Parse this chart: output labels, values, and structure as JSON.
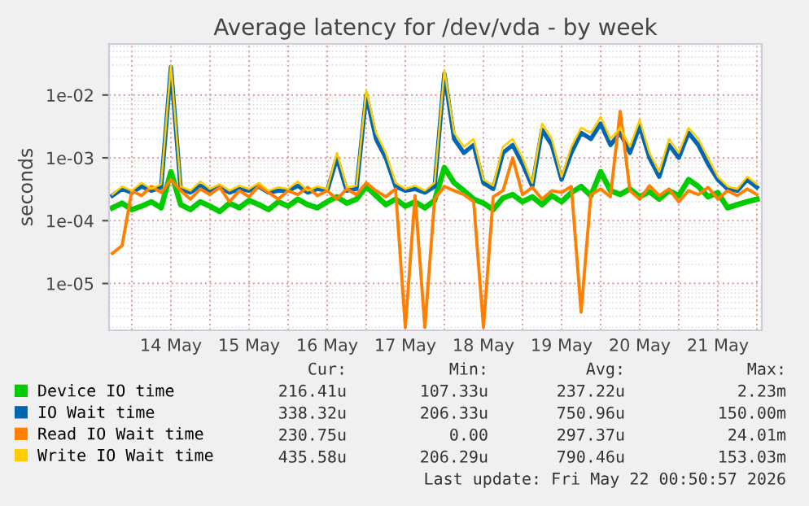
{
  "chart_data": {
    "type": "line",
    "title": "Average latency for /dev/vda - by week",
    "ylabel": "seconds",
    "x": [
      "2026-05-13T18:00",
      "2026-05-13T21:00",
      "2026-05-14T00:00",
      "2026-05-14T03:00",
      "2026-05-14T06:00",
      "2026-05-14T09:00",
      "2026-05-14T12:00",
      "2026-05-14T15:00",
      "2026-05-14T18:00",
      "2026-05-14T21:00",
      "2026-05-15T00:00",
      "2026-05-15T03:00",
      "2026-05-15T06:00",
      "2026-05-15T09:00",
      "2026-05-15T12:00",
      "2026-05-15T15:00",
      "2026-05-15T18:00",
      "2026-05-15T21:00",
      "2026-05-16T00:00",
      "2026-05-16T03:00",
      "2026-05-16T06:00",
      "2026-05-16T09:00",
      "2026-05-16T12:00",
      "2026-05-16T15:00",
      "2026-05-16T18:00",
      "2026-05-16T21:00",
      "2026-05-17T00:00",
      "2026-05-17T03:00",
      "2026-05-17T06:00",
      "2026-05-17T09:00",
      "2026-05-17T12:00",
      "2026-05-17T15:00",
      "2026-05-17T18:00",
      "2026-05-17T21:00",
      "2026-05-18T00:00",
      "2026-05-18T03:00",
      "2026-05-18T06:00",
      "2026-05-18T09:00",
      "2026-05-18T12:00",
      "2026-05-18T15:00",
      "2026-05-18T18:00",
      "2026-05-18T21:00",
      "2026-05-19T00:00",
      "2026-05-19T03:00",
      "2026-05-19T06:00",
      "2026-05-19T09:00",
      "2026-05-19T12:00",
      "2026-05-19T15:00",
      "2026-05-19T18:00",
      "2026-05-19T21:00",
      "2026-05-20T00:00",
      "2026-05-20T03:00",
      "2026-05-20T06:00",
      "2026-05-20T09:00",
      "2026-05-20T12:00",
      "2026-05-20T15:00",
      "2026-05-20T18:00",
      "2026-05-20T21:00",
      "2026-05-21T00:00",
      "2026-05-21T03:00",
      "2026-05-21T06:00",
      "2026-05-21T09:00",
      "2026-05-21T12:00",
      "2026-05-21T15:00",
      "2026-05-21T18:00",
      "2026-05-21T21:00",
      "2026-05-22T00:00"
    ],
    "series": [
      {
        "name": "Device IO time",
        "color": "#00cc00",
        "values": [
          0.00016,
          0.00019,
          0.00015,
          0.00017,
          0.0002,
          0.00016,
          0.0006,
          0.00018,
          0.00015,
          0.0002,
          0.00017,
          0.00014,
          0.00019,
          0.00016,
          0.00021,
          0.00018,
          0.00015,
          0.0002,
          0.00017,
          0.00022,
          0.00018,
          0.00016,
          0.0002,
          0.00024,
          0.00019,
          0.00022,
          0.00035,
          0.00025,
          0.00018,
          0.00022,
          0.00017,
          0.0002,
          0.00016,
          0.00021,
          0.0007,
          0.0004,
          0.0003,
          0.00022,
          0.00019,
          0.00015,
          0.00023,
          0.00026,
          0.0002,
          0.00024,
          0.00018,
          0.00025,
          0.0002,
          0.00028,
          0.00035,
          0.00025,
          0.0006,
          0.0003,
          0.00026,
          0.00032,
          0.00024,
          0.00029,
          0.00022,
          0.0003,
          0.00025,
          0.00045,
          0.00035,
          0.00024,
          0.00028,
          0.00016,
          0.00018,
          0.0002,
          0.00022
        ]
      },
      {
        "name": "IO Wait time",
        "color": "#0066b3",
        "values": [
          0.00025,
          0.00032,
          0.00028,
          0.00035,
          0.0003,
          0.00034,
          0.028,
          0.00032,
          0.00028,
          0.00036,
          0.0003,
          0.00034,
          0.00028,
          0.00032,
          0.0003,
          0.00035,
          0.00028,
          0.0003,
          0.0003,
          0.00036,
          0.00028,
          0.00032,
          0.0003,
          0.001,
          0.0003,
          0.00032,
          0.01,
          0.002,
          0.001,
          0.00035,
          0.0003,
          0.00032,
          0.00028,
          0.00035,
          0.022,
          0.002,
          0.0012,
          0.0016,
          0.0004,
          0.00032,
          0.0012,
          0.0016,
          0.0008,
          0.00035,
          0.0028,
          0.0016,
          0.00045,
          0.0012,
          0.0025,
          0.002,
          0.0035,
          0.0016,
          0.0025,
          0.0012,
          0.0032,
          0.001,
          0.0005,
          0.0016,
          0.001,
          0.0025,
          0.0016,
          0.0008,
          0.00045,
          0.00032,
          0.0003,
          0.00045,
          0.00034
        ]
      },
      {
        "name": "Read IO Wait time",
        "color": "#ff8000",
        "values": [
          3e-05,
          4e-05,
          0.0003,
          0.00025,
          0.00035,
          0.00028,
          0.00045,
          0.0003,
          0.00022,
          0.00032,
          0.00026,
          0.00034,
          0.0002,
          0.0003,
          0.00024,
          0.00036,
          0.00028,
          0.00022,
          0.0003,
          0.00026,
          0.00034,
          0.00025,
          0.0003,
          0.00022,
          0.00032,
          0.00026,
          0.0004,
          0.0003,
          0.00024,
          0.00032,
          2e-06,
          0.00025,
          2e-06,
          0.00022,
          0.00035,
          0.0003,
          0.00026,
          0.0002,
          2e-06,
          0.00024,
          0.0003,
          0.001,
          0.00026,
          0.00034,
          0.00022,
          0.0003,
          0.00028,
          0.00035,
          3.5e-06,
          0.00026,
          0.00032,
          0.00024,
          0.0055,
          0.0003,
          0.00022,
          0.00036,
          0.00025,
          0.00032,
          0.0002,
          0.0003,
          0.00026,
          0.00034,
          0.00022,
          0.0003,
          0.00025,
          0.00032,
          0.00026
        ]
      },
      {
        "name": "Write IO Wait time",
        "color": "#ffcc00",
        "values": [
          0.00026,
          0.00035,
          0.0003,
          0.0004,
          0.00032,
          0.00038,
          0.03,
          0.00035,
          0.0003,
          0.00042,
          0.00032,
          0.00038,
          0.0003,
          0.00036,
          0.00032,
          0.0004,
          0.0003,
          0.00034,
          0.00032,
          0.00042,
          0.0003,
          0.00035,
          0.00032,
          0.0012,
          0.00034,
          0.00036,
          0.012,
          0.0025,
          0.0012,
          0.0004,
          0.00032,
          0.00036,
          0.0003,
          0.0004,
          0.025,
          0.0025,
          0.0015,
          0.002,
          0.00045,
          0.00036,
          0.0015,
          0.002,
          0.001,
          0.0004,
          0.0035,
          0.002,
          0.0005,
          0.0015,
          0.003,
          0.0025,
          0.0045,
          0.002,
          0.003,
          0.0015,
          0.004,
          0.0012,
          0.0006,
          0.002,
          0.0012,
          0.003,
          0.002,
          0.001,
          0.0005,
          0.00035,
          0.00032,
          0.0005,
          0.00038
        ]
      }
    ],
    "log": "y",
    "xlim": [
      "2026-05-13T17:00",
      "2026-05-22T01:30"
    ],
    "xticks": [
      {
        "value": "2026-05-14T00:00",
        "label": null
      },
      {
        "value": "2026-05-14T12:00",
        "label": "14 May"
      },
      {
        "value": "2026-05-15T00:00",
        "label": null
      },
      {
        "value": "2026-05-15T12:00",
        "label": "15 May"
      },
      {
        "value": "2026-05-16T00:00",
        "label": null
      },
      {
        "value": "2026-05-16T12:00",
        "label": "16 May"
      },
      {
        "value": "2026-05-17T00:00",
        "label": null
      },
      {
        "value": "2026-05-17T12:00",
        "label": "17 May"
      },
      {
        "value": "2026-05-18T00:00",
        "label": null
      },
      {
        "value": "2026-05-18T12:00",
        "label": "18 May"
      },
      {
        "value": "2026-05-19T00:00",
        "label": null
      },
      {
        "value": "2026-05-19T12:00",
        "label": "19 May"
      },
      {
        "value": "2026-05-20T00:00",
        "label": null
      },
      {
        "value": "2026-05-20T12:00",
        "label": "20 May"
      },
      {
        "value": "2026-05-21T00:00",
        "label": null
      },
      {
        "value": "2026-05-21T12:00",
        "label": "21 May"
      },
      {
        "value": "2026-05-22T00:00",
        "label": null
      }
    ],
    "ylim": [
      1.8e-06,
      0.065
    ],
    "yticks": [
      {
        "value": 1e-05,
        "label": "1e-05"
      },
      {
        "value": 0.0001,
        "label": "1e-04"
      },
      {
        "value": 0.001,
        "label": "1e-03"
      },
      {
        "value": 0.01,
        "label": "1e-02"
      }
    ],
    "grid": true,
    "legend": "bottom",
    "line_style": "solid",
    "marker": "none",
    "annotations": [
      "Cur:",
      "Min:",
      "Avg:",
      "Max:",
      "216.41u",
      "107.33u",
      "237.22u",
      "2.23m",
      "338.32u",
      "206.33u",
      "750.96u",
      "150.00m",
      "230.75u",
      "0.00",
      "297.37u",
      "24.01m",
      "435.58u",
      "206.29u",
      "790.46u",
      "153.03m",
      "Last update: Fri May 22 00:50:57 2026"
    ]
  }
}
